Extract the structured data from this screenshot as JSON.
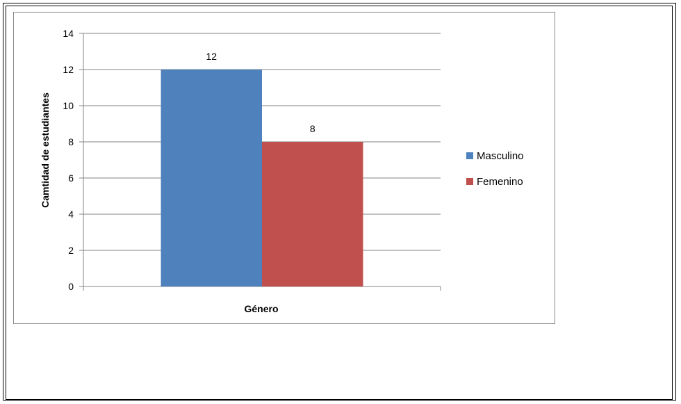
{
  "chart_data": {
    "type": "bar",
    "categories": [
      ""
    ],
    "series": [
      {
        "name": "Masculino",
        "values": [
          12
        ],
        "color": "#4F81BD"
      },
      {
        "name": "Femenino",
        "values": [
          8
        ],
        "color": "#C0504D"
      }
    ],
    "data_labels": [
      "12",
      "8"
    ],
    "xlabel": "Género",
    "ylabel": "Camtidad de estudiantes",
    "ylim": [
      0,
      14
    ],
    "yticks": [
      0,
      2,
      4,
      6,
      8,
      10,
      12,
      14
    ],
    "grid": true,
    "legend": "right"
  }
}
